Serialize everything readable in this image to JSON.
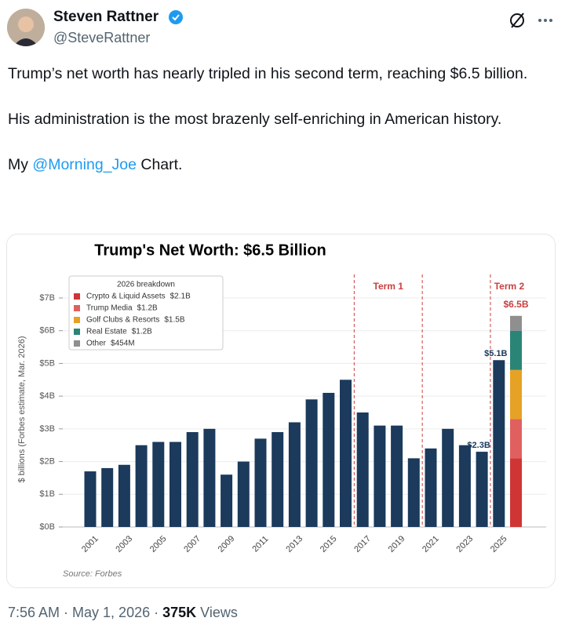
{
  "tweet": {
    "name": "Steven Rattner",
    "handle": "@SteveRattner",
    "paragraphs": [
      [
        "Trump’s net worth has nearly tripled in his second term, reaching $6.5 billion."
      ],
      [
        "His administration is the most brazenly self-enriching in American history."
      ],
      [
        "My ",
        "@Morning_Joe",
        " Chart."
      ]
    ],
    "time": "7:56 AM · May 1, 2026 · ",
    "views": "375K",
    "views_word": " Views"
  },
  "chart_data": {
    "type": "bar",
    "title": "Trump's Net Worth: $6.5 Billion",
    "y_label": "$ billions (Forbes estimate, Mar. 2026)",
    "source": "Source: Forbes",
    "categories": [
      "2001",
      null,
      "2003",
      null,
      "2005",
      null,
      "2007",
      null,
      "2009",
      null,
      "2011",
      null,
      "2013",
      null,
      "2015",
      null,
      "2017",
      null,
      "2019",
      null,
      "2021",
      null,
      "2023",
      null,
      "2025",
      null
    ],
    "values": [
      1.7,
      1.8,
      1.9,
      2.5,
      2.6,
      2.6,
      2.9,
      3.0,
      1.6,
      2.0,
      2.7,
      2.9,
      3.2,
      3.9,
      4.1,
      4.5,
      3.5,
      3.1,
      3.1,
      2.1,
      2.4,
      3.0,
      2.5,
      2.3,
      5.1,
      null
    ],
    "value_labels": [
      null,
      null,
      null,
      null,
      null,
      null,
      null,
      null,
      null,
      null,
      null,
      null,
      null,
      null,
      null,
      null,
      null,
      null,
      null,
      null,
      null,
      null,
      null,
      "$2.3B",
      "$5.1B",
      null
    ],
    "color": "#1b3a5c",
    "breakdown": {
      "title": "2026 breakdown",
      "total": 6.5,
      "total_label": "$6.5B",
      "series": [
        {
          "name": "Crypto & Liquid Assets",
          "color": "#d03535",
          "values": [
            2.1
          ],
          "value_labels": [
            "$2.1B"
          ]
        },
        {
          "name": "Trump Media",
          "color": "#e06060",
          "values": [
            1.2
          ],
          "value_labels": [
            "$1.2B"
          ]
        },
        {
          "name": "Golf Clubs & Resorts",
          "color": "#e6a224",
          "values": [
            1.5
          ],
          "value_labels": [
            "$1.5B"
          ]
        },
        {
          "name": "Real Estate",
          "color": "#2a8577",
          "values": [
            1.2
          ],
          "value_labels": [
            "$1.2B"
          ]
        },
        {
          "name": "Other",
          "color": "#8f8f8f",
          "values": [
            0.454
          ],
          "value_labels": [
            "$454M"
          ]
        }
      ]
    },
    "terms": [
      {
        "label": "Term 1",
        "start": 15.5,
        "end": 19.5
      },
      {
        "label": "Term 2",
        "start": 23.5
      }
    ],
    "ylim": [
      0,
      7
    ],
    "yticks": [
      {
        "value": 0,
        "label": "$0B"
      },
      {
        "value": 1,
        "label": "$1B"
      },
      {
        "value": 2,
        "label": "$2B"
      },
      {
        "value": 3,
        "label": "$3B"
      },
      {
        "value": 4,
        "label": "$4B"
      },
      {
        "value": 5,
        "label": "$5B"
      },
      {
        "value": 6,
        "label": "$6B"
      },
      {
        "value": 7,
        "label": "$7B"
      }
    ],
    "grid": true
  }
}
